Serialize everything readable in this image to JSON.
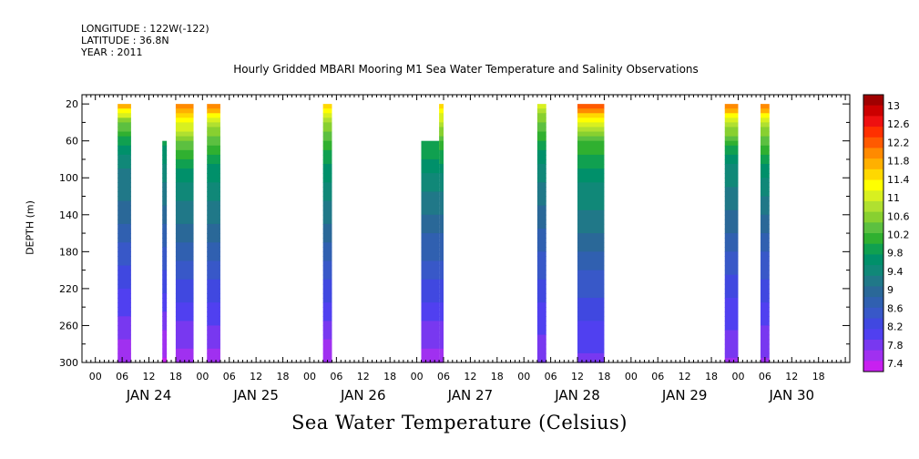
{
  "header": {
    "longitude": "LONGITUDE : 122W(-122)",
    "latitude": "LATITUDE : 36.8N",
    "year": "YEAR : 2011"
  },
  "chart_data": {
    "type": "heatmap",
    "title": "Hourly Gridded MBARI Mooring M1 Sea Water Temperature and Salinity Observations",
    "xlabel": "",
    "ylabel": "DEPTH (m)",
    "colorbar_title": "Sea Water Temperature (Celsius)",
    "x_hour_labels": [
      "00",
      "06",
      "12",
      "18"
    ],
    "x_day_labels": [
      "JAN 24",
      "JAN 25",
      "JAN 26",
      "JAN 27",
      "JAN 28",
      "JAN 29",
      "JAN 30"
    ],
    "xlim_hours": [
      -3,
      169
    ],
    "y_tick_labels": [
      "20",
      "60",
      "100",
      "140",
      "180",
      "220",
      "260",
      "300"
    ],
    "ylim": [
      300,
      10
    ],
    "colorbar_levels": [
      "13",
      "12.6",
      "12.2",
      "11.8",
      "11.4",
      "11",
      "10.6",
      "10.2",
      "9.8",
      "9.4",
      "9",
      "8.6",
      "8.2",
      "7.8",
      "7.4"
    ],
    "colorbar_colors": [
      "#a00000",
      "#cc0000",
      "#ee1010",
      "#ff3000",
      "#ff5a00",
      "#ff8a00",
      "#ffb000",
      "#ffd800",
      "#ffff00",
      "#d8f020",
      "#b0e030",
      "#88d030",
      "#5cc040",
      "#30b030",
      "#10a050",
      "#00906a",
      "#108878",
      "#207888",
      "#2a6898",
      "#3060b0",
      "#3858c8",
      "#4048e0",
      "#5040f0",
      "#7838f0",
      "#a030f0",
      "#c820f0"
    ],
    "segments": [
      {
        "start": 5,
        "end": 8,
        "top": 20,
        "profile": [
          [
            20,
            11.8
          ],
          [
            40,
            10.4
          ],
          [
            80,
            9.4
          ],
          [
            130,
            9.1
          ],
          [
            180,
            8.6
          ],
          [
            230,
            8.2
          ],
          [
            280,
            7.8
          ],
          [
            300,
            7.6
          ]
        ]
      },
      {
        "start": 15,
        "end": 16,
        "top": 60,
        "profile": [
          [
            60,
            9.8
          ],
          [
            100,
            9.4
          ],
          [
            150,
            8.9
          ],
          [
            200,
            8.5
          ],
          [
            250,
            8.0
          ],
          [
            280,
            7.7
          ],
          [
            300,
            7.6
          ]
        ]
      },
      {
        "start": 18,
        "end": 22,
        "top": 20,
        "profile": [
          [
            20,
            12.0
          ],
          [
            35,
            11.3
          ],
          [
            60,
            10.4
          ],
          [
            100,
            9.6
          ],
          [
            150,
            9.1
          ],
          [
            200,
            8.6
          ],
          [
            250,
            8.1
          ],
          [
            300,
            7.7
          ]
        ]
      },
      {
        "start": 25,
        "end": 28,
        "top": 20,
        "profile": [
          [
            20,
            12.0
          ],
          [
            40,
            10.8
          ],
          [
            80,
            9.8
          ],
          [
            130,
            9.3
          ],
          [
            180,
            8.8
          ],
          [
            230,
            8.3
          ],
          [
            280,
            7.9
          ],
          [
            300,
            7.7
          ]
        ]
      },
      {
        "start": 51,
        "end": 53,
        "top": 20,
        "profile": [
          [
            20,
            11.4
          ],
          [
            40,
            10.6
          ],
          [
            80,
            9.8
          ],
          [
            140,
            9.2
          ],
          [
            190,
            8.7
          ],
          [
            240,
            8.2
          ],
          [
            280,
            7.8
          ],
          [
            300,
            7.6
          ]
        ]
      },
      {
        "start": 73,
        "end": 77,
        "top": 60,
        "profile": [
          [
            60,
            10.0
          ],
          [
            100,
            9.5
          ],
          [
            150,
            9.0
          ],
          [
            200,
            8.6
          ],
          [
            250,
            8.1
          ],
          [
            300,
            7.7
          ]
        ]
      },
      {
        "start": 77,
        "end": 78,
        "top": 20,
        "profile": [
          [
            20,
            11.4
          ],
          [
            60,
            10.2
          ],
          [
            100,
            9.5
          ],
          [
            150,
            9.0
          ],
          [
            200,
            8.6
          ],
          [
            250,
            8.1
          ],
          [
            300,
            7.7
          ]
        ]
      },
      {
        "start": 99,
        "end": 101,
        "top": 20,
        "profile": [
          [
            20,
            11.0
          ],
          [
            40,
            10.4
          ],
          [
            80,
            9.6
          ],
          [
            130,
            9.1
          ],
          [
            180,
            8.7
          ],
          [
            230,
            8.3
          ],
          [
            280,
            8.0
          ],
          [
            300,
            7.9
          ]
        ]
      },
      {
        "start": 108,
        "end": 114,
        "top": 20,
        "profile": [
          [
            20,
            12.2
          ],
          [
            40,
            11.0
          ],
          [
            60,
            10.2
          ],
          [
            100,
            9.6
          ],
          [
            150,
            9.2
          ],
          [
            200,
            8.7
          ],
          [
            250,
            8.3
          ],
          [
            300,
            8.0
          ]
        ]
      },
      {
        "start": 141,
        "end": 144,
        "top": 20,
        "profile": [
          [
            20,
            12.0
          ],
          [
            40,
            10.8
          ],
          [
            80,
            9.6
          ],
          [
            140,
            9.1
          ],
          [
            190,
            8.6
          ],
          [
            240,
            8.2
          ],
          [
            290,
            7.9
          ],
          [
            300,
            7.8
          ]
        ]
      },
      {
        "start": 149,
        "end": 151,
        "top": 20,
        "profile": [
          [
            20,
            12.0
          ],
          [
            40,
            10.8
          ],
          [
            80,
            9.8
          ],
          [
            130,
            9.2
          ],
          [
            180,
            8.7
          ],
          [
            230,
            8.3
          ],
          [
            280,
            7.9
          ],
          [
            300,
            7.8
          ]
        ]
      }
    ]
  }
}
